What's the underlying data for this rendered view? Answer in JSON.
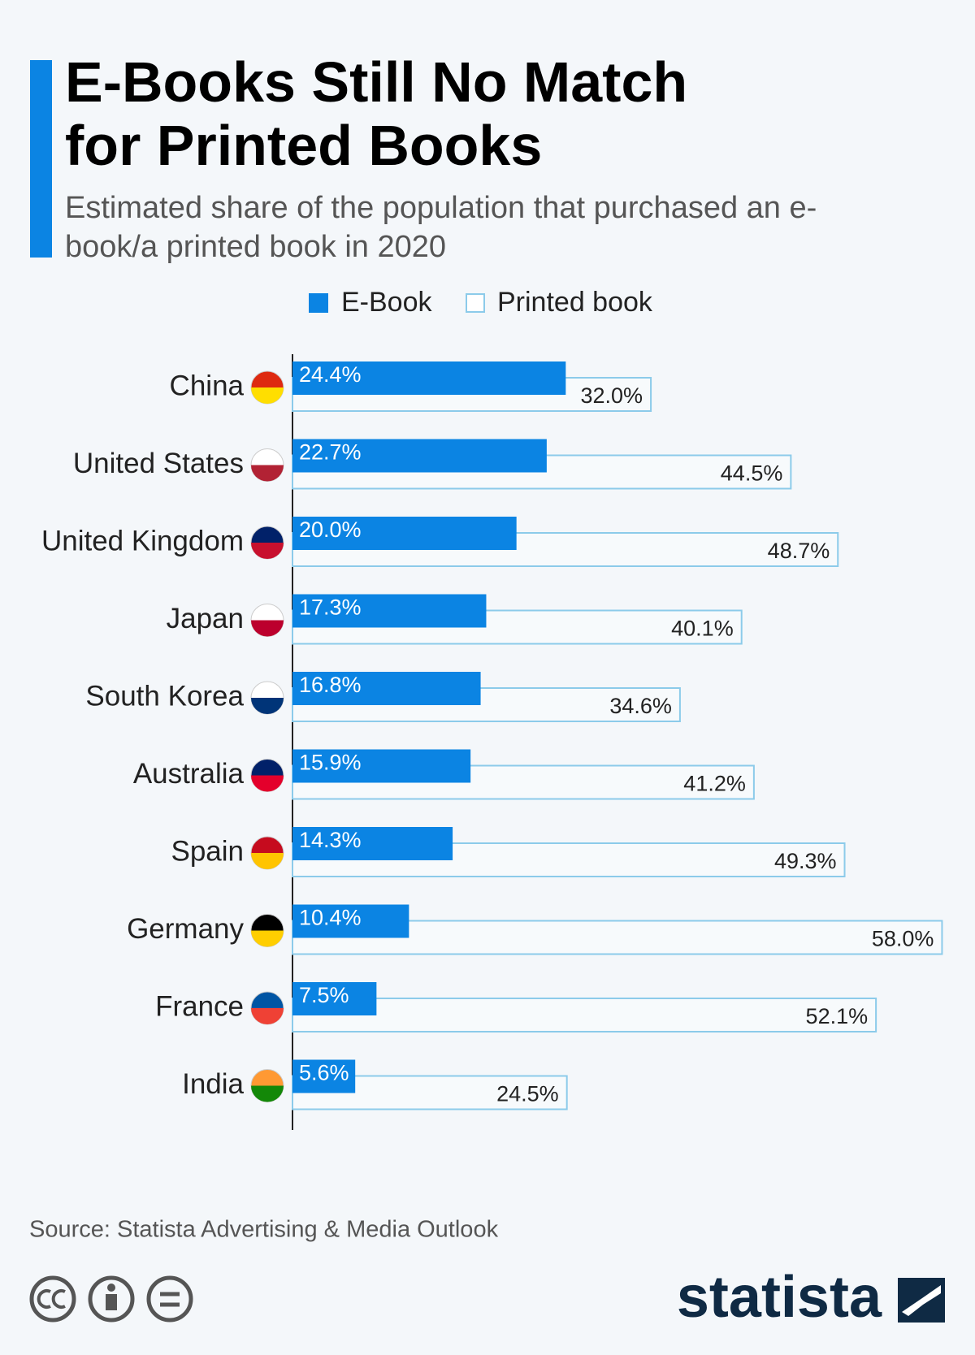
{
  "chart_data": {
    "type": "bar",
    "orientation": "horizontal",
    "title": "E-Books Still No Match for Printed Books",
    "subtitle": "Estimated share of the population that purchased an e-book/a printed book in 2020",
    "categories": [
      "China",
      "United States",
      "United Kingdom",
      "Japan",
      "South Korea",
      "Australia",
      "Spain",
      "Germany",
      "France",
      "India"
    ],
    "series": [
      {
        "name": "E-Book",
        "color": "#0b84e3",
        "values": [
          24.4,
          22.7,
          20.0,
          17.3,
          16.8,
          15.9,
          14.3,
          10.4,
          7.5,
          5.6
        ],
        "value_labels": [
          "24.4%",
          "22.7%",
          "20.0%",
          "17.3%",
          "16.8%",
          "15.9%",
          "14.3%",
          "10.4%",
          "7.5%",
          "5.6%"
        ]
      },
      {
        "name": "Printed book",
        "color": "#8ccbea",
        "values": [
          32.0,
          44.5,
          48.7,
          40.1,
          34.6,
          41.2,
          49.3,
          58.0,
          52.1,
          24.5
        ],
        "value_labels": [
          "32.0%",
          "44.5%",
          "48.7%",
          "40.1%",
          "34.6%",
          "41.2%",
          "49.3%",
          "58.0%",
          "52.1%",
          "24.5%"
        ]
      }
    ],
    "xlim": [
      0,
      60
    ],
    "source": "Source: Statista Advertising & Media Outlook",
    "logo": "statista"
  }
}
